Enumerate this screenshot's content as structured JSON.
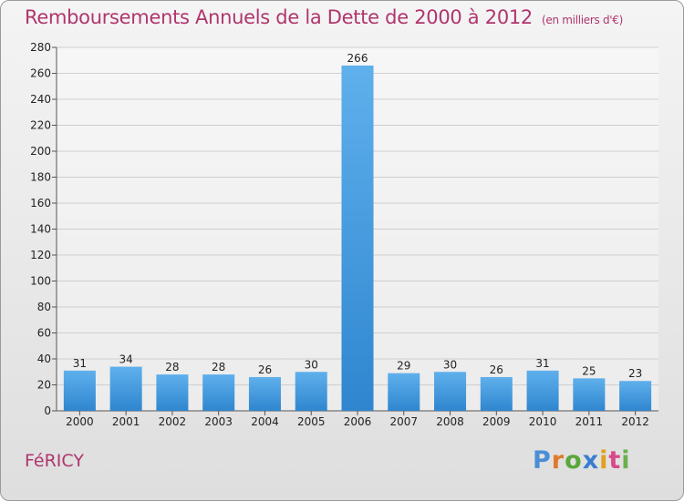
{
  "header": {
    "title": "Remboursements Annuels de la Dette de 2000 à 2012",
    "unit": "(en milliers d'€)"
  },
  "footer": {
    "commune": "FéRICY",
    "brand": [
      "P",
      "r",
      "o",
      "x",
      "i",
      "t",
      "i"
    ],
    "brand_colors": [
      "#4a8fd6",
      "#e07a2a",
      "#5aa83a",
      "#3a7dd0",
      "#e0a020",
      "#d84a8a",
      "#6ab04c"
    ]
  },
  "colors": {
    "title": "#b0356d",
    "bar_top": "#5fb0ec",
    "bar_bottom": "#2f86cf",
    "grid": "#cfcfcf"
  },
  "chart_data": {
    "type": "bar",
    "title": "Remboursements Annuels de la Dette de 2000 à 2012",
    "xlabel": "",
    "ylabel": "",
    "categories": [
      "2000",
      "2001",
      "2002",
      "2003",
      "2004",
      "2005",
      "2006",
      "2007",
      "2008",
      "2009",
      "2010",
      "2011",
      "2012"
    ],
    "values": [
      31,
      34,
      28,
      28,
      26,
      30,
      266,
      29,
      30,
      26,
      31,
      25,
      23
    ],
    "ylim": [
      0,
      280
    ],
    "yticks": [
      0,
      20,
      40,
      60,
      80,
      100,
      120,
      140,
      160,
      180,
      200,
      220,
      240,
      260,
      280
    ],
    "grid": true
  }
}
